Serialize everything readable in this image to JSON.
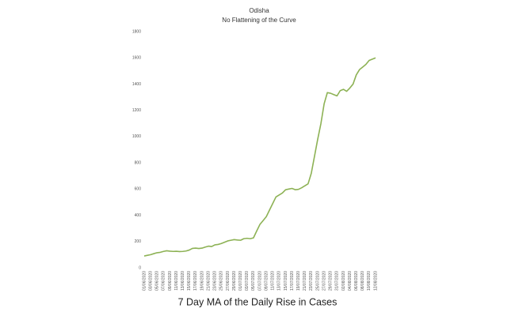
{
  "chart_data": {
    "type": "line",
    "title": "Odisha",
    "subtitle": "No Flattening of the Curve",
    "caption": "7 Day MA of the Daily Rise in Cases",
    "color": "#8db255",
    "grid": false,
    "ylim": [
      0,
      1800
    ],
    "yticks": [
      0,
      200,
      400,
      600,
      800,
      1000,
      1200,
      1400,
      1600,
      1800
    ],
    "categories": [
      "01/06/2020",
      null,
      "03/06/2020",
      null,
      "05/06/2020",
      null,
      "07/06/2020",
      null,
      "09/06/2020",
      null,
      "11/06/2020",
      null,
      "13/06/2020",
      null,
      "15/06/2020",
      null,
      "17/06/2020",
      null,
      "19/06/2020",
      null,
      "21/06/2020",
      null,
      "23/06/2020",
      null,
      "25/06/2020",
      null,
      "27/06/2020",
      null,
      "29/06/2020",
      null,
      "01/07/2020",
      null,
      "03/07/2020",
      null,
      "05/07/2020",
      null,
      "07/07/2020",
      null,
      "09/07/2020",
      null,
      "11/07/2020",
      null,
      "13/07/2020",
      null,
      "15/07/2020",
      null,
      "17/07/2020",
      null,
      "19/07/2020",
      null,
      "21/07/2020",
      null,
      "23/07/2020",
      null,
      "25/07/2020",
      null,
      "27/07/2020",
      null,
      "29/07/2020",
      null,
      "31/07/2020",
      null,
      "02/08/2020",
      null,
      "04/08/2020",
      null,
      "06/08/2020",
      null,
      "08/08/2020",
      null,
      "10/08/2020",
      null,
      "12/08/2020"
    ],
    "values": [
      90,
      95,
      100,
      108,
      115,
      118,
      125,
      130,
      127,
      125,
      126,
      124,
      125,
      128,
      135,
      148,
      150,
      147,
      150,
      158,
      165,
      162,
      175,
      178,
      185,
      195,
      205,
      210,
      215,
      212,
      210,
      222,
      225,
      222,
      228,
      280,
      330,
      360,
      390,
      440,
      490,
      540,
      555,
      570,
      595,
      600,
      605,
      595,
      598,
      610,
      625,
      640,
      720,
      850,
      980,
      1100,
      1250,
      1335,
      1330,
      1320,
      1310,
      1350,
      1360,
      1345,
      1370,
      1400,
      1470,
      1510,
      1530,
      1550,
      1580,
      1590,
      1600
    ]
  }
}
